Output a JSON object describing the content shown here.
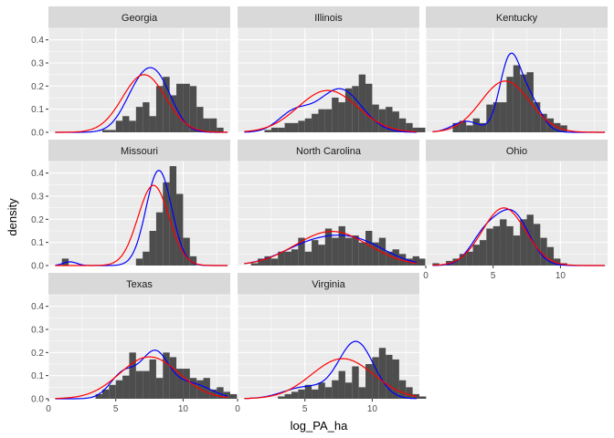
{
  "chart_data": {
    "type": "histogram",
    "xlabel": "log_PA_ha",
    "ylabel": "density",
    "xlim": [
      0,
      13.5
    ],
    "ylim": [
      0,
      0.45
    ],
    "x_ticks": [
      0,
      5,
      10
    ],
    "y_ticks": [
      0.0,
      0.1,
      0.2,
      0.3,
      0.4
    ],
    "y_tick_labels": [
      "0.0",
      "0.1",
      "0.2",
      "0.3",
      "0.4"
    ],
    "grid": true,
    "bin_start": 0.5,
    "bin_width": 0.5,
    "colors": {
      "panel_bg": "#ebebeb",
      "grid": "#ffffff",
      "strip_bg": "#d9d9d9",
      "bars": "#4d4d4d",
      "density_line": "#0000ff",
      "normal_line": "#ff0000"
    },
    "panels": [
      {
        "name": "Georgia",
        "bars": [
          0,
          0,
          0,
          0,
          0,
          0,
          0,
          0.01,
          0.01,
          0.05,
          0.07,
          0.05,
          0.11,
          0.13,
          0.07,
          0.2,
          0.24,
          0.16,
          0.21,
          0.21,
          0.2,
          0.11,
          0.06,
          0.06,
          0.02,
          0,
          0,
          0,
          0,
          0,
          0
        ],
        "normal_fit": {
          "mean": 7.1,
          "sd": 1.6
        },
        "density_peaks": [
          {
            "mean": 6.8,
            "sd": 1.2,
            "w": 0.55
          },
          {
            "mean": 8.3,
            "sd": 1.1,
            "w": 0.45
          }
        ]
      },
      {
        "name": "Illinois",
        "bars": [
          0,
          0,
          0,
          0.01,
          0.02,
          0.02,
          0.04,
          0.04,
          0.05,
          0.06,
          0.08,
          0.1,
          0.1,
          0.15,
          0.13,
          0.19,
          0.2,
          0.25,
          0.21,
          0.12,
          0.1,
          0.11,
          0.09,
          0.06,
          0.04,
          0.02,
          0.02,
          0.01,
          0,
          0,
          0
        ],
        "normal_fit": {
          "mean": 6.7,
          "sd": 2.2
        },
        "density_peaks": [
          {
            "mean": 4.2,
            "sd": 1.2,
            "w": 0.25
          },
          {
            "mean": 7.6,
            "sd": 1.6,
            "w": 0.75
          }
        ]
      },
      {
        "name": "Kentucky",
        "bars": [
          0,
          0,
          0,
          0.04,
          0.05,
          0.03,
          0.06,
          0.04,
          0.12,
          0.13,
          0.13,
          0.24,
          0.29,
          0.25,
          0.26,
          0.13,
          0.08,
          0.06,
          0.04,
          0.03,
          0,
          0,
          0,
          0,
          0,
          0,
          0,
          0,
          0,
          0,
          0
        ],
        "normal_fit": {
          "mean": 5.9,
          "sd": 1.8
        },
        "density_peaks": [
          {
            "mean": 3.0,
            "sd": 1.0,
            "w": 0.12
          },
          {
            "mean": 6.2,
            "sd": 0.75,
            "w": 0.55
          },
          {
            "mean": 7.6,
            "sd": 0.9,
            "w": 0.33
          }
        ]
      },
      {
        "name": "Missouri",
        "bars": [
          0,
          0.03,
          0,
          0,
          0,
          0,
          0,
          0,
          0,
          0,
          0,
          0,
          0.03,
          0.06,
          0.15,
          0.23,
          0.36,
          0.43,
          0.31,
          0.12,
          0.04,
          0,
          0,
          0,
          0,
          0,
          0,
          0,
          0,
          0,
          0
        ],
        "normal_fit": {
          "mean": 7.8,
          "sd": 1.15
        },
        "density_peaks": [
          {
            "mean": 1.6,
            "sd": 0.5,
            "w": 0.02
          },
          {
            "mean": 8.2,
            "sd": 0.95,
            "w": 0.98
          }
        ]
      },
      {
        "name": "North Carolina",
        "bars": [
          0,
          0.01,
          0.03,
          0.04,
          0.03,
          0.06,
          0.06,
          0.07,
          0.12,
          0.06,
          0.11,
          0.09,
          0.16,
          0.12,
          0.17,
          0.12,
          0.13,
          0.1,
          0.15,
          0.1,
          0.12,
          0.06,
          0.07,
          0.05,
          0.03,
          0.04,
          0.03,
          0.02,
          0.01,
          0,
          0
        ],
        "normal_fit": {
          "mean": 7.0,
          "sd": 2.7
        },
        "density_peaks": [
          {
            "mean": 5.5,
            "sd": 2.3,
            "w": 0.5
          },
          {
            "mean": 9.0,
            "sd": 2.2,
            "w": 0.5
          }
        ]
      },
      {
        "name": "Ohio",
        "bars": [
          0.01,
          0,
          0.02,
          0.03,
          0.05,
          0.06,
          0.09,
          0.11,
          0.16,
          0.17,
          0.2,
          0.17,
          0.13,
          0.2,
          0.22,
          0.18,
          0.12,
          0.08,
          0.03,
          0.01,
          0,
          0,
          0,
          0,
          0,
          0,
          0,
          0,
          0,
          0,
          0
        ],
        "normal_fit": {
          "mean": 5.8,
          "sd": 1.6
        },
        "density_peaks": [
          {
            "mean": 4.4,
            "sd": 1.1,
            "w": 0.35
          },
          {
            "mean": 6.5,
            "sd": 1.2,
            "w": 0.65
          }
        ]
      },
      {
        "name": "Texas",
        "bars": [
          0,
          0,
          0,
          0,
          0,
          0,
          0.02,
          0.04,
          0.06,
          0.08,
          0.1,
          0.2,
          0.12,
          0.12,
          0.17,
          0.09,
          0.2,
          0.18,
          0.13,
          0.13,
          0.09,
          0.08,
          0.09,
          0.04,
          0.05,
          0.03,
          0.02,
          0.01,
          0.03,
          0.01,
          0
        ],
        "normal_fit": {
          "mean": 7.5,
          "sd": 2.2
        },
        "density_peaks": [
          {
            "mean": 5.6,
            "sd": 1.0,
            "w": 0.28
          },
          {
            "mean": 7.9,
            "sd": 1.0,
            "w": 0.47
          },
          {
            "mean": 10.5,
            "sd": 1.5,
            "w": 0.25
          }
        ]
      },
      {
        "name": "Virginia",
        "bars": [
          0,
          0,
          0,
          0,
          0,
          0.01,
          0.02,
          0.03,
          0.04,
          0.06,
          0.04,
          0.07,
          0.05,
          0.08,
          0.12,
          0.07,
          0.14,
          0.05,
          0.15,
          0.18,
          0.22,
          0.19,
          0.17,
          0.08,
          0.05,
          0.02,
          0.01,
          0,
          0,
          0,
          0
        ],
        "normal_fit": {
          "mean": 7.8,
          "sd": 2.3
        },
        "density_peaks": [
          {
            "mean": 5.0,
            "sd": 1.6,
            "w": 0.2
          },
          {
            "mean": 8.8,
            "sd": 1.3,
            "w": 0.8
          }
        ]
      }
    ]
  }
}
